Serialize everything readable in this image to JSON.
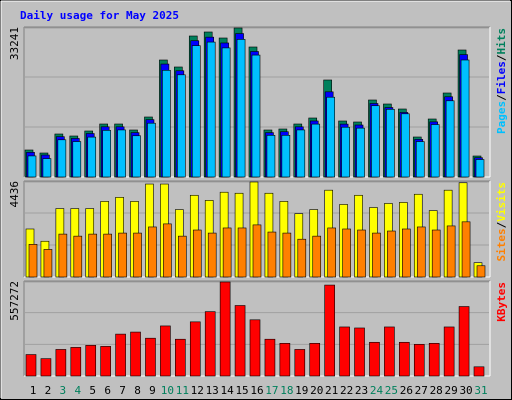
{
  "title": "Daily usage for May 2025",
  "chart_data": [
    {
      "type": "bar",
      "ylim": [
        0,
        33241
      ],
      "yticks": [
        33241
      ],
      "legend_separator": "/",
      "series": [
        {
          "name": "Hits",
          "color": "#00805c",
          "values": [
            6024,
            5354,
            9593,
            9147,
            10263,
            11824,
            11824,
            10486,
            13386,
            26102,
            24541,
            31456,
            32349,
            31010,
            33241,
            29003,
            10486,
            10709,
            11824,
            13163,
            21640,
            12493,
            12270,
            17178,
            16286,
            15170,
            8924,
            12940,
            18740,
            28333,
            4685
          ]
        },
        {
          "name": "Files",
          "color": "#0000ff",
          "values": [
            5500,
            4900,
            9000,
            8600,
            9700,
            11200,
            11200,
            9900,
            12800,
            25200,
            23700,
            30400,
            31200,
            29900,
            32000,
            28000,
            9900,
            10100,
            11200,
            12500,
            19000,
            11800,
            11600,
            16400,
            15500,
            14400,
            8400,
            12300,
            17900,
            27300,
            4300
          ]
        },
        {
          "name": "Pages",
          "color": "#00c0ff",
          "values": [
            4700,
            4100,
            8300,
            7900,
            8900,
            10400,
            10500,
            9200,
            12000,
            23800,
            22800,
            29300,
            30100,
            28800,
            30700,
            27200,
            9300,
            9300,
            10500,
            11800,
            17800,
            11100,
            10900,
            15900,
            15100,
            14100,
            7900,
            11700,
            17000,
            26100,
            3900
          ]
        }
      ]
    },
    {
      "type": "bar",
      "ylim": [
        0,
        4436
      ],
      "yticks": [
        4436
      ],
      "legend_separator": "/",
      "series": [
        {
          "name": "Visits",
          "color": "#ffff00",
          "values": [
            2242,
            1670,
            3196,
            3196,
            3196,
            3530,
            3721,
            3530,
            4341,
            4341,
            3148,
            3816,
            3578,
            3959,
            3911,
            4436,
            3911,
            3530,
            2957,
            3148,
            4054,
            3387,
            3816,
            3244,
            3434,
            3482,
            3864,
            3101,
            4054,
            4400,
            668
          ]
        },
        {
          "name": "Sites",
          "color": "#ff8000",
          "values": [
            1526,
            1288,
            2003,
            1908,
            2003,
            2003,
            2051,
            2051,
            2337,
            2480,
            1908,
            2194,
            2051,
            2290,
            2290,
            2433,
            2099,
            2051,
            1765,
            1908,
            2290,
            2242,
            2194,
            2051,
            2147,
            2242,
            2337,
            2194,
            2385,
            2576,
            525
          ]
        }
      ]
    },
    {
      "type": "bar",
      "ylim": [
        0,
        557272
      ],
      "yticks": [
        557272
      ],
      "categories": [
        "1",
        "2",
        "3",
        "4",
        "5",
        "6",
        "7",
        "8",
        "9",
        "10",
        "11",
        "12",
        "13",
        "14",
        "15",
        "16",
        "17",
        "18",
        "19",
        "20",
        "21",
        "22",
        "23",
        "24",
        "25",
        "26",
        "27",
        "28",
        "29",
        "30",
        "31"
      ],
      "category_colors": [
        "#000000",
        "#000000",
        "#00805c",
        "#00805c",
        "#000000",
        "#000000",
        "#000000",
        "#000000",
        "#000000",
        "#00805c",
        "#00805c",
        "#000000",
        "#000000",
        "#000000",
        "#000000",
        "#000000",
        "#00805c",
        "#00805c",
        "#000000",
        "#000000",
        "#000000",
        "#000000",
        "#000000",
        "#00805c",
        "#00805c",
        "#000000",
        "#000000",
        "#000000",
        "#000000",
        "#000000",
        "#00805c"
      ],
      "series": [
        {
          "name": "KBytes",
          "color": "#ff0000",
          "values": [
            127197,
            102969,
            157482,
            169596,
            181710,
            175653,
            248337,
            260451,
            224109,
            296793,
            218052,
            321021,
            381591,
            557272,
            417933,
            333135,
            218052,
            193824,
            157482,
            193824,
            539073,
            290736,
            284679,
            199881,
            290736,
            199881,
            187767,
            193824,
            290736,
            411876,
            54513
          ]
        }
      ]
    }
  ]
}
